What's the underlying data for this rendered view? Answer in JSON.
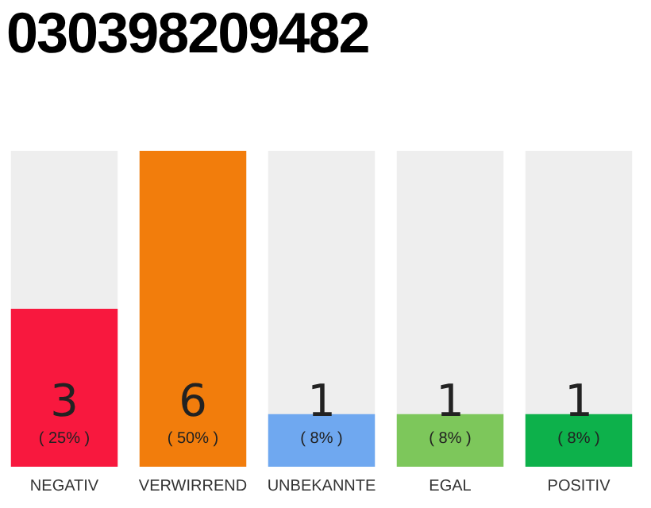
{
  "chart_data": {
    "type": "bar",
    "title": "030398209482",
    "categories": [
      "NEGATIV",
      "VERWIRREND",
      "UNBEKANNTE",
      "EGAL",
      "POSITIV"
    ],
    "values": [
      3,
      6,
      1,
      1,
      1
    ],
    "colors": [
      "#f8183e",
      "#f27d0c",
      "#6fa8f0",
      "#7dc75b",
      "#0db14b"
    ],
    "value_labels": [
      "3\n( 25% )",
      "6\n( 50% )",
      "1\n( 8% )",
      "1\n( 8% )",
      "1\n( 8% )"
    ],
    "grid": false,
    "legend": false
  }
}
